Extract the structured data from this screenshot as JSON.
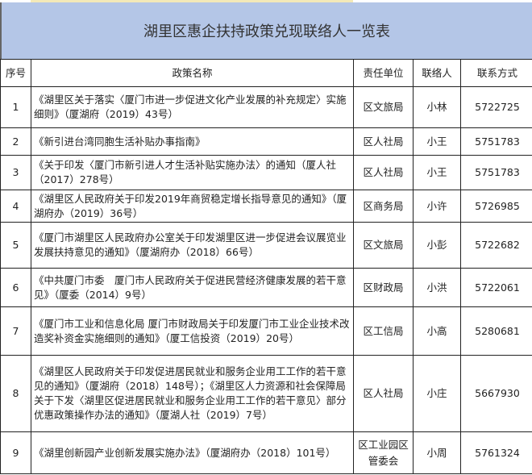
{
  "title": "湖里区惠企扶持政策兑现联络人一览表",
  "headers": [
    "序号",
    "政策名称",
    "责任单位",
    "联络人",
    "联系方式"
  ],
  "rows": [
    {
      "no": "1",
      "policy": "《湖里区关于落实〈厦门市进一步促进文化产业发展的补充规定〉实施细则》（厦湖府（2019）43号）",
      "unit": "区文旅局",
      "contact": "小林",
      "phone": "5722725"
    },
    {
      "no": "2",
      "policy": "《新引进台湾同胞生活补贴办事指南》",
      "unit": "区人社局",
      "contact": "小王",
      "phone": "5751783"
    },
    {
      "no": "3",
      "policy": "《关于印发〈厦门市新引进人才生活补贴实施办法〉的通知（厦人社（2017）278号）",
      "unit": "区人社局",
      "contact": "小王",
      "phone": "5751783"
    },
    {
      "no": "4",
      "policy": "《湖里区人民政府关于印发2019年商贸稳定增长指导意见的通知》（厦湖府办（2019）36号）",
      "unit": "区商务局",
      "contact": "小许",
      "phone": "5726985"
    },
    {
      "no": "5",
      "policy": "《厦门市湖里区人民政府办公室关于印发湖里区进一步促进会议展览业发展扶持意见的通知》（厦湖府办（2018）66号）",
      "unit": "区文旅局",
      "contact": "小彭",
      "phone": "5722682"
    },
    {
      "no": "6",
      "policy": "《中共厦门市委　厦门市人民政府关于促进民营经济健康发展的若干意见》（厦委（2014）9号）",
      "unit": "区财政局",
      "contact": "小洪",
      "phone": "5722061"
    },
    {
      "no": "7",
      "policy": "《厦门市工业和信息化局 厦门市财政局关于印发厦门市工业企业技术改造奖补资金实施细则的通知》（厦工信投资（2019）20号）",
      "unit": "区工信局",
      "contact": "小高",
      "phone": "5280681"
    },
    {
      "no": "8",
      "policy": "《湖里区人民政府关于印发促进居民就业和服务企业用工工作的若干意见的通知》（厦湖府（2018）148号）；《湖里区人力资源和社会保障局关于下发〈湖里区促进居民就业和服务企业用工工作的若干意见〉部分优惠政策操作办法的通知》（厦湖人社（2019）7号）",
      "unit": "区人社局",
      "contact": "小庄",
      "phone": "5667930"
    },
    {
      "no": "9",
      "policy": "《湖里创新园产业创新发展实施办法》（厦湖府办（2018）101号）",
      "unit": "区工业园区管委会",
      "contact": "小周",
      "phone": "5761324"
    }
  ]
}
